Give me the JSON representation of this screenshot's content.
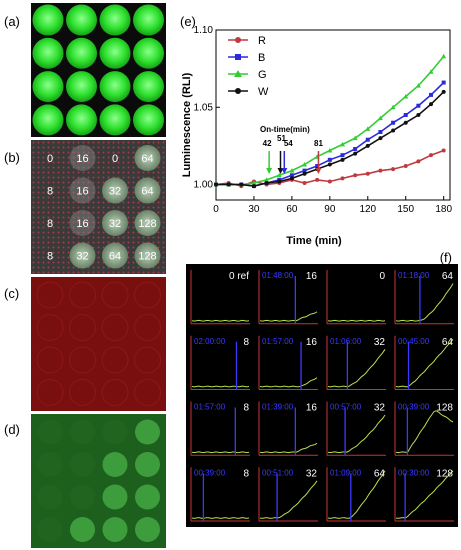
{
  "labels": {
    "a": "(a)",
    "b": "(b)",
    "c": "(c)",
    "d": "(d)",
    "e": "(e)",
    "f": "(f)"
  },
  "panel_b": {
    "grid": [
      [
        "0",
        "16",
        "0",
        "64"
      ],
      [
        "8",
        "16",
        "32",
        "64"
      ],
      [
        "8",
        "16",
        "32",
        "128"
      ],
      [
        "8",
        "32",
        "64",
        "128"
      ]
    ],
    "brightness": [
      [
        0,
        1,
        0,
        2
      ],
      [
        0,
        1,
        2,
        2
      ],
      [
        0,
        1,
        2,
        2
      ],
      [
        0,
        2,
        2,
        2
      ]
    ]
  },
  "panel_d": {
    "spots": [
      [
        0,
        0,
        0,
        1
      ],
      [
        0,
        0,
        1,
        1
      ],
      [
        0,
        0,
        1,
        1
      ],
      [
        0,
        1,
        1,
        1
      ]
    ]
  },
  "chart_data": {
    "type": "line",
    "xlabel": "Time (min)",
    "ylabel": "Luminescence (RLI)",
    "xlim": [
      0,
      185
    ],
    "ylim": [
      0.99,
      1.1
    ],
    "xticks": [
      0,
      30,
      60,
      90,
      120,
      150,
      180
    ],
    "yticks": [
      1.0,
      1.05,
      1.1
    ],
    "ytick_labels": [
      "1.00",
      "1.05",
      "1.10"
    ],
    "legend_position": "top-left",
    "annotation_title": "On-time(min)",
    "series": [
      {
        "name": "R",
        "color": "#c0393f",
        "marker": "circle",
        "x": [
          0,
          10,
          20,
          30,
          40,
          50,
          60,
          70,
          80,
          90,
          100,
          110,
          120,
          130,
          140,
          150,
          160,
          170,
          180
        ],
        "y": [
          1.0,
          1.001,
          0.999,
          1.002,
          1.0,
          1.001,
          1.003,
          1.001,
          1.003,
          1.002,
          1.004,
          1.006,
          1.007,
          1.009,
          1.01,
          1.012,
          1.015,
          1.019,
          1.022
        ]
      },
      {
        "name": "B",
        "color": "#2b2bdb",
        "marker": "square",
        "x": [
          0,
          10,
          20,
          30,
          40,
          50,
          60,
          70,
          80,
          90,
          100,
          110,
          120,
          130,
          140,
          150,
          160,
          170,
          180
        ],
        "y": [
          1.0,
          1.0,
          1.0,
          0.999,
          1.001,
          1.003,
          1.006,
          1.009,
          1.012,
          1.016,
          1.019,
          1.023,
          1.029,
          1.034,
          1.04,
          1.045,
          1.051,
          1.058,
          1.066
        ]
      },
      {
        "name": "G",
        "color": "#33cc33",
        "marker": "triangle",
        "x": [
          0,
          10,
          20,
          30,
          40,
          50,
          60,
          70,
          80,
          90,
          100,
          110,
          120,
          130,
          140,
          150,
          160,
          170,
          180
        ],
        "y": [
          1.0,
          1.0,
          1.0,
          1.001,
          1.003,
          1.006,
          1.009,
          1.013,
          1.018,
          1.022,
          1.026,
          1.03,
          1.036,
          1.043,
          1.05,
          1.057,
          1.064,
          1.073,
          1.083
        ]
      },
      {
        "name": "W",
        "color": "#111111",
        "marker": "circle",
        "x": [
          0,
          10,
          20,
          30,
          40,
          50,
          60,
          70,
          80,
          90,
          100,
          110,
          120,
          130,
          140,
          150,
          160,
          170,
          180
        ],
        "y": [
          1.0,
          1.0,
          1.0,
          0.999,
          1.001,
          1.002,
          1.004,
          1.007,
          1.01,
          1.013,
          1.016,
          1.02,
          1.025,
          1.03,
          1.035,
          1.04,
          1.045,
          1.052,
          1.06
        ]
      }
    ],
    "on_times": [
      {
        "label": "42",
        "x": 42,
        "color": "#33cc33"
      },
      {
        "label": "51",
        "x": 51,
        "color": "#111111"
      },
      {
        "label": "54",
        "x": 54,
        "color": "#2b2bdb"
      },
      {
        "label": "81",
        "x": 81,
        "color": "#c0393f"
      }
    ]
  },
  "panel_f": {
    "cells": [
      {
        "time": "",
        "label": "0 ref",
        "on": null,
        "curve": "flat"
      },
      {
        "time": "01:48:00",
        "label": "16",
        "on": 0.62,
        "curve": "slight"
      },
      {
        "time": "",
        "label": "0",
        "on": null,
        "curve": "flat"
      },
      {
        "time": "01:18:00",
        "label": "64",
        "on": 0.42,
        "curve": "rise"
      },
      {
        "time": "02:00:00",
        "label": "8",
        "on": 0.78,
        "curve": "flat"
      },
      {
        "time": "01:57:00",
        "label": "16",
        "on": 0.72,
        "curve": "slight"
      },
      {
        "time": "01:06:00",
        "label": "32",
        "on": 0.34,
        "curve": "rise"
      },
      {
        "time": "00:45:00",
        "label": "64",
        "on": 0.22,
        "curve": "steep"
      },
      {
        "time": "01:57:00",
        "label": "8",
        "on": 0.76,
        "curve": "flat"
      },
      {
        "time": "01:39:00",
        "label": "16",
        "on": 0.62,
        "curve": "slight"
      },
      {
        "time": "00:57:00",
        "label": "32",
        "on": 0.3,
        "curve": "rise"
      },
      {
        "time": "00:39:00",
        "label": "128",
        "on": 0.2,
        "curve": "peak"
      },
      {
        "time": "00:39:00",
        "label": "8",
        "on": 0.2,
        "curve": "flat"
      },
      {
        "time": "00:51:00",
        "label": "32",
        "on": 0.3,
        "curve": "rise"
      },
      {
        "time": "01:09:00",
        "label": "64",
        "on": 0.4,
        "curve": "steep"
      },
      {
        "time": "00:30:00",
        "label": "128",
        "on": 0.16,
        "curve": "steep"
      }
    ]
  }
}
